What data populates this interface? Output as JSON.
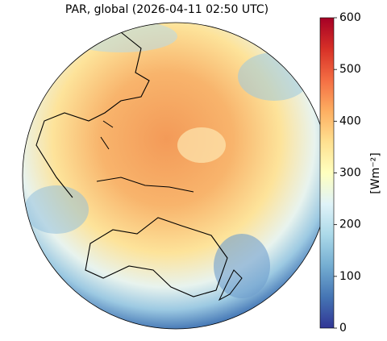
{
  "title": "PAR, global (2026-04-11 02:50 UTC)",
  "colorbar": {
    "label": "[Wm⁻²]",
    "lim": [
      0,
      600
    ],
    "ticks": [
      0,
      100,
      200,
      300,
      400,
      500,
      600
    ]
  }
}
